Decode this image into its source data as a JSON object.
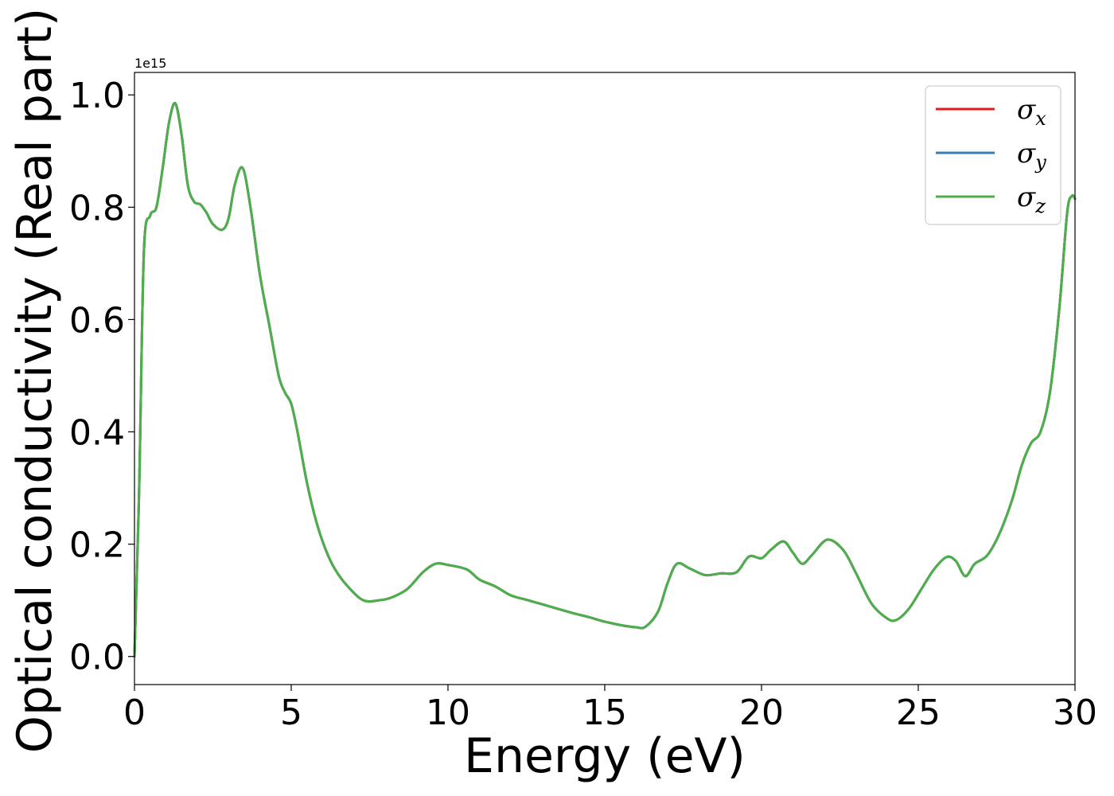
{
  "chart_data": {
    "type": "line",
    "xlabel": "Energy (eV)",
    "ylabel": "Optical conductivity (Real part)",
    "y_offset_label": "1e15",
    "y_scale": 1000000000000000.0,
    "xlim": [
      0,
      30
    ],
    "ylim": [
      -0.05,
      1.04
    ],
    "xticks": [
      0,
      5,
      10,
      15,
      20,
      25,
      30
    ],
    "yticks": [
      0.0,
      0.2,
      0.4,
      0.6,
      0.8,
      1.0
    ],
    "grid": false,
    "legend_position": "top-right",
    "series": [
      {
        "name": "σx",
        "symbol": "σ",
        "subscript": "x",
        "color": "#e41a1c"
      },
      {
        "name": "σy",
        "symbol": "σ",
        "subscript": "y",
        "color": "#377eb8"
      },
      {
        "name": "σz",
        "symbol": "σ",
        "subscript": "z",
        "color": "#4daf4a"
      }
    ],
    "x": [
      0,
      0.15,
      0.3,
      0.5,
      0.7,
      0.9,
      1.1,
      1.3,
      1.5,
      1.7,
      1.9,
      2.1,
      2.3,
      2.5,
      2.8,
      3.0,
      3.2,
      3.45,
      3.7,
      4.0,
      4.3,
      4.6,
      4.8,
      5.0,
      5.2,
      5.5,
      5.8,
      6.1,
      6.4,
      6.8,
      7.3,
      7.8,
      8.2,
      8.7,
      9.2,
      9.6,
      10.0,
      10.6,
      11.0,
      11.5,
      12.0,
      12.5,
      13.0,
      13.5,
      14.0,
      14.5,
      15.0,
      15.5,
      16.0,
      16.3,
      16.7,
      17.0,
      17.3,
      17.7,
      18.2,
      18.7,
      19.2,
      19.6,
      20.0,
      20.3,
      20.7,
      21.0,
      21.3,
      21.6,
      22.1,
      22.6,
      23.0,
      23.5,
      24.0,
      24.3,
      24.7,
      25.1,
      25.5,
      25.9,
      26.2,
      26.5,
      26.8,
      27.2,
      27.6,
      28.0,
      28.3,
      28.6,
      28.9,
      29.2,
      29.5,
      29.75,
      29.9,
      30.0
    ],
    "values_scaled": [
      0.0,
      0.3,
      0.72,
      0.785,
      0.8,
      0.87,
      0.95,
      0.985,
      0.93,
      0.84,
      0.81,
      0.805,
      0.79,
      0.77,
      0.76,
      0.78,
      0.84,
      0.87,
      0.8,
      0.68,
      0.59,
      0.5,
      0.47,
      0.45,
      0.4,
      0.31,
      0.24,
      0.19,
      0.155,
      0.125,
      0.1,
      0.1,
      0.105,
      0.12,
      0.15,
      0.165,
      0.163,
      0.155,
      0.137,
      0.125,
      0.109,
      0.101,
      0.093,
      0.085,
      0.077,
      0.07,
      0.062,
      0.056,
      0.052,
      0.053,
      0.08,
      0.13,
      0.165,
      0.157,
      0.145,
      0.148,
      0.15,
      0.178,
      0.175,
      0.19,
      0.205,
      0.185,
      0.165,
      0.18,
      0.208,
      0.19,
      0.15,
      0.095,
      0.068,
      0.065,
      0.085,
      0.12,
      0.155,
      0.177,
      0.17,
      0.143,
      0.165,
      0.18,
      0.22,
      0.28,
      0.34,
      0.38,
      0.4,
      0.47,
      0.62,
      0.79,
      0.82,
      0.815
    ]
  }
}
